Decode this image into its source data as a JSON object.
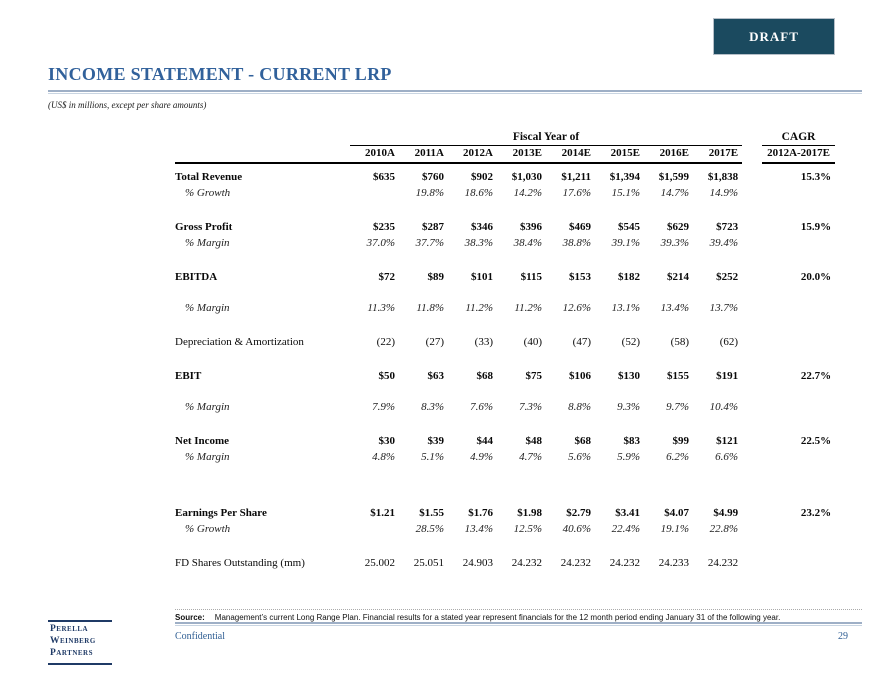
{
  "badge": {
    "label": "DRAFT"
  },
  "header": {
    "title": "INCOME STATEMENT - CURRENT LRP",
    "subtitle": "(US$ in millions, except per share amounts)"
  },
  "table": {
    "group_header": "Fiscal Year of",
    "cagr_header": "CAGR",
    "cagr_subheader": "2012A-2017E",
    "year_columns": [
      "2010A",
      "2011A",
      "2012A",
      "2013E",
      "2014E",
      "2015E",
      "2016E",
      "2017E"
    ],
    "rows": [
      {
        "label": "Total Revenue",
        "style": "bold",
        "gap": "first",
        "values": [
          "$635",
          "$760",
          "$902",
          "$1,030",
          "$1,211",
          "$1,394",
          "$1,599",
          "$1,838"
        ],
        "cagr": "15.3%"
      },
      {
        "label": "% Growth",
        "style": "italic",
        "gap": "tight",
        "values": [
          "",
          "19.8%",
          "18.6%",
          "14.2%",
          "17.6%",
          "15.1%",
          "14.7%",
          "14.9%"
        ],
        "cagr": ""
      },
      {
        "label": "Gross Profit",
        "style": "bold",
        "gap": "medium",
        "values": [
          "$235",
          "$287",
          "$346",
          "$396",
          "$469",
          "$545",
          "$629",
          "$723"
        ],
        "cagr": "15.9%"
      },
      {
        "label": "% Margin",
        "style": "italic",
        "gap": "tight",
        "values": [
          "37.0%",
          "37.7%",
          "38.3%",
          "38.4%",
          "38.8%",
          "39.1%",
          "39.3%",
          "39.4%"
        ],
        "cagr": ""
      },
      {
        "label": "EBITDA",
        "style": "bold",
        "gap": "medium",
        "values": [
          "$72",
          "$89",
          "$101",
          "$115",
          "$153",
          "$182",
          "$214",
          "$252"
        ],
        "cagr": "20.0%"
      },
      {
        "label": "% Margin",
        "style": "italic",
        "gap": "open",
        "values": [
          "11.3%",
          "11.8%",
          "11.2%",
          "11.2%",
          "12.6%",
          "13.1%",
          "13.4%",
          "13.7%"
        ],
        "cagr": ""
      },
      {
        "label": "Depreciation & Amortization",
        "style": "regular",
        "gap": "medium",
        "values": [
          "(22)",
          "(27)",
          "(33)",
          "(40)",
          "(47)",
          "(52)",
          "(58)",
          "(62)"
        ],
        "cagr": ""
      },
      {
        "label": "EBIT",
        "style": "bold",
        "gap": "medium",
        "values": [
          "$50",
          "$63",
          "$68",
          "$75",
          "$106",
          "$130",
          "$155",
          "$191"
        ],
        "cagr": "22.7%"
      },
      {
        "label": "% Margin",
        "style": "italic",
        "gap": "open",
        "values": [
          "7.9%",
          "8.3%",
          "7.6%",
          "7.3%",
          "8.8%",
          "9.3%",
          "9.7%",
          "10.4%"
        ],
        "cagr": ""
      },
      {
        "label": "Net Income",
        "style": "bold",
        "gap": "medium",
        "values": [
          "$30",
          "$39",
          "$44",
          "$48",
          "$68",
          "$83",
          "$99",
          "$121"
        ],
        "cagr": "22.5%"
      },
      {
        "label": "% Margin",
        "style": "italic",
        "gap": "tight",
        "values": [
          "4.8%",
          "5.1%",
          "4.9%",
          "4.7%",
          "5.6%",
          "5.9%",
          "6.2%",
          "6.6%"
        ],
        "cagr": ""
      },
      {
        "label": "Earnings Per Share",
        "style": "bold",
        "gap": "large",
        "values": [
          "$1.21",
          "$1.55",
          "$1.76",
          "$1.98",
          "$2.79",
          "$3.41",
          "$4.07",
          "$4.99"
        ],
        "cagr": "23.2%"
      },
      {
        "label": "% Growth",
        "style": "italic",
        "gap": "tight",
        "values": [
          "",
          "28.5%",
          "13.4%",
          "12.5%",
          "40.6%",
          "22.4%",
          "19.1%",
          "22.8%"
        ],
        "cagr": ""
      },
      {
        "label": "FD Shares Outstanding (mm)",
        "style": "regular",
        "gap": "medium",
        "values": [
          "25.002",
          "25.051",
          "24.903",
          "24.232",
          "24.232",
          "24.232",
          "24.233",
          "24.232"
        ],
        "cagr": ""
      }
    ]
  },
  "footer": {
    "source_label": "Source:",
    "source_text": "Management’s current Long Range Plan. Financial results for a stated year represent financials for the 12 month period ending January 31 of the following year.",
    "confidential": "Confidential",
    "page_number": "29"
  },
  "logo": {
    "lines": [
      "Perella",
      "Weinberg",
      "Partners"
    ]
  },
  "colors": {
    "title_blue": "#31619B",
    "draft_bg": "#1B4A5F",
    "logo_navy": "#1F3A66",
    "footer_blue": "#2F5E93",
    "rule_light_blue": "#9EAFC6"
  }
}
